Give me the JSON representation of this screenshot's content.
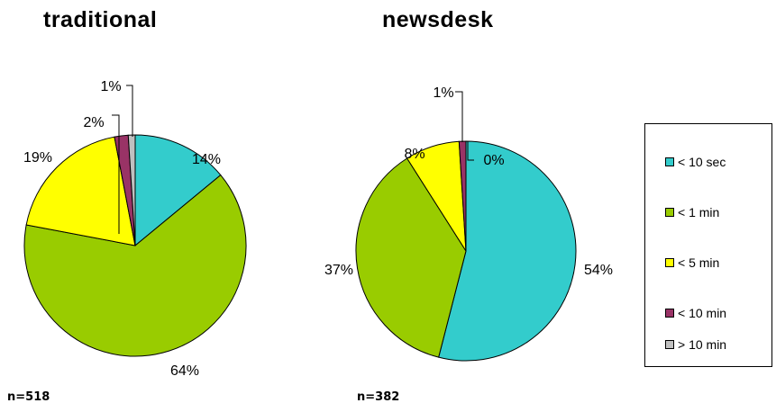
{
  "chart_data": [
    {
      "type": "pie",
      "title": "traditional",
      "n_label": "n=518",
      "slices": [
        {
          "category": "< 10 sec",
          "value": 14,
          "label": "14%"
        },
        {
          "category": "< 1 min",
          "value": 64,
          "label": "64%"
        },
        {
          "category": "< 5 min",
          "value": 19,
          "label": "19%"
        },
        {
          "category": "< 10 min",
          "value": 2,
          "label": "2%"
        },
        {
          "category": "> 10 min",
          "value": 1,
          "label": "1%"
        }
      ]
    },
    {
      "type": "pie",
      "title": "newsdesk",
      "n_label": "n=382",
      "slices": [
        {
          "category": "< 10 sec",
          "value": 54,
          "label": "54%"
        },
        {
          "category": "< 1 min",
          "value": 37,
          "label": "37%"
        },
        {
          "category": "< 5 min",
          "value": 8,
          "label": "8%"
        },
        {
          "category": "< 10 min",
          "value": 1,
          "label": "1%"
        },
        {
          "category": "> 10 min",
          "value": 0,
          "label": "0%"
        }
      ]
    }
  ],
  "legend": [
    {
      "label": "< 10 sec",
      "color": "#33cccc"
    },
    {
      "label": "< 1 min",
      "color": "#99cc00"
    },
    {
      "label": "< 5 min",
      "color": "#ffff00"
    },
    {
      "label": "< 10 min",
      "color": "#993366"
    },
    {
      "label": "> 10 min",
      "color": "#c0c0c0"
    }
  ]
}
